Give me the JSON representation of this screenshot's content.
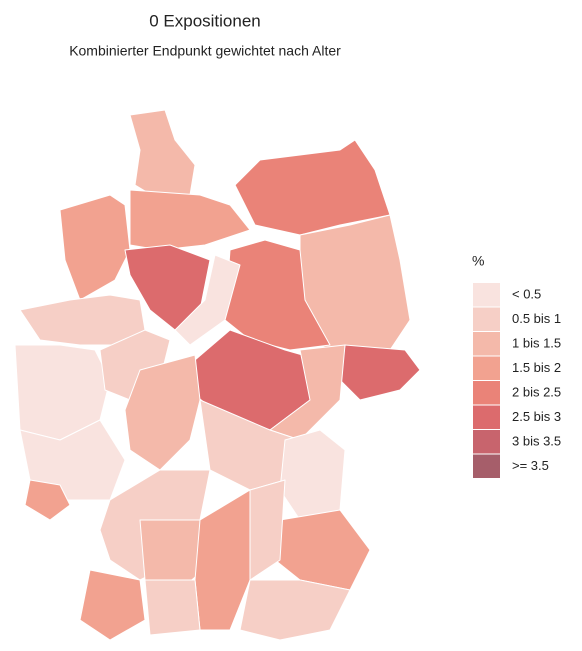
{
  "title": "0 Expositionen",
  "subtitle": "Kombinierter Endpunkt gewichtet nach Alter",
  "legend": {
    "title": "%",
    "items": [
      {
        "label": "< 0.5",
        "color": "#f9e3df"
      },
      {
        "label": "0.5 bis 1",
        "color": "#f6cfc6"
      },
      {
        "label": "1 bis 1.5",
        "color": "#f4b9aa"
      },
      {
        "label": "1.5 bis 2",
        "color": "#f2a290"
      },
      {
        "label": "2 bis 2.5",
        "color": "#ea8378"
      },
      {
        "label": "2.5 bis 3",
        "color": "#dc6b6d"
      },
      {
        "label": "3 bis 3.5",
        "color": "#c8646d"
      },
      {
        "label": ">= 3.5",
        "color": "#a65e6a"
      }
    ]
  }
}
